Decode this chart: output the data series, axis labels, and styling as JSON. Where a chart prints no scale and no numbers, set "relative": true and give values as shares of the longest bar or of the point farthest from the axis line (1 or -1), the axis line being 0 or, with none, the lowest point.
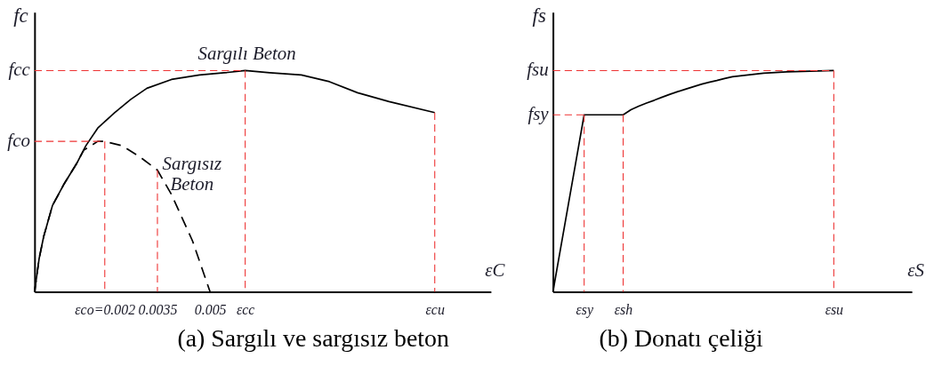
{
  "chart_data": [
    {
      "type": "line",
      "title": "(a) Sargılı ve sargısız beton",
      "xlabel": "εC",
      "ylabel": "fc",
      "relative": true,
      "grid": false,
      "xlim": [
        0,
        0.013
      ],
      "xticks": [
        {
          "value": 0.002,
          "label": "εco=0.002"
        },
        0.0035,
        0.005,
        {
          "value": 0.006,
          "label": "εcc"
        },
        {
          "value": 0.0114,
          "label": "εcu"
        }
      ],
      "series": [
        {
          "name": "Sargılı Beton",
          "color": "#000000",
          "line_style": "solid",
          "x": [
            0,
            0.00013,
            0.00026,
            0.00051,
            0.00085,
            0.0012,
            0.00146,
            0.0018,
            0.00228,
            0.00274,
            0.0032,
            0.0039,
            0.0047,
            0.0054,
            0.006,
            0.0067,
            0.0076,
            0.0084,
            0.0092,
            0.0101,
            0.0114
          ],
          "values": [
            0,
            0.15,
            0.25,
            0.39,
            0.49,
            0.58,
            0.66,
            0.74,
            0.81,
            0.87,
            0.92,
            0.96,
            0.98,
            0.99,
            1,
            0.99,
            0.98,
            0.95,
            0.9,
            0.86,
            0.81
          ]
        },
        {
          "name": "Sargısız Beton",
          "color": "#000000",
          "line_style": "dashed",
          "x": [
            0,
            0.00013,
            0.00026,
            0.00051,
            0.00085,
            0.0012,
            0.0014,
            0.0018,
            0.002,
            0.0025,
            0.003,
            0.0035,
            0.0039,
            0.0045,
            0.005
          ],
          "values": [
            0,
            0.15,
            0.25,
            0.39,
            0.49,
            0.58,
            0.64,
            0.68,
            0.68,
            0.66,
            0.61,
            0.55,
            0.44,
            0.23,
            0
          ]
        },
        {
          "name": "fco",
          "color": "#ee3333",
          "line_style": "dashed",
          "x": [
            0,
            0.002,
            0.002
          ],
          "values": [
            0.68,
            0.68,
            0
          ]
        },
        {
          "name": "fcc",
          "color": "#ee3333",
          "line_style": "dashed",
          "x": [
            0,
            0.006,
            0.006
          ],
          "values": [
            1,
            1,
            0
          ]
        },
        {
          "color": "#ee3333",
          "line_style": "dashed",
          "x": [
            0.0035,
            0.0035
          ],
          "values": [
            0.55,
            0
          ]
        },
        {
          "color": "#ee3333",
          "line_style": "dashed",
          "x": [
            0.0114,
            0.0114
          ],
          "values": [
            0.81,
            0
          ]
        }
      ]
    },
    {
      "type": "line",
      "title": "(b) Donatı çeliği",
      "xlabel": "εS",
      "ylabel": "fs",
      "relative": true,
      "grid": false,
      "categories": [
        null,
        null,
        null,
        null,
        "εsy",
        null,
        null,
        null,
        null,
        "εsh",
        null,
        null,
        null,
        null,
        null,
        null,
        null,
        null,
        null,
        null,
        null,
        null,
        null,
        null,
        null,
        null,
        null,
        null,
        null,
        null,
        null,
        null,
        null,
        null,
        null,
        null,
        "εsu",
        null,
        null,
        null,
        null,
        null,
        null,
        null,
        null,
        null,
        null
      ],
      "series": [
        {
          "color": "#000000",
          "line_style": "solid",
          "values": [
            0,
            0.2,
            0.4,
            0.6,
            0.8,
            0.8,
            0.8,
            0.8,
            0.8,
            0.8,
            0.823,
            0.839,
            0.853,
            0.866,
            0.88,
            0.893,
            0.905,
            0.916,
            0.927,
            0.938,
            0.947,
            0.955,
            0.964,
            0.972,
            0.976,
            0.98,
            0.984,
            0.988,
            0.99,
            0.992,
            0.994,
            0.995,
            0.996,
            0.997,
            0.998,
            0.999,
            1,
            null,
            null,
            null,
            null,
            null,
            null,
            null,
            null,
            null,
            null
          ]
        },
        {
          "name": "fsu",
          "color": "#ee3333",
          "line_style": "dashed",
          "values": [
            1,
            1,
            1,
            1,
            1,
            1,
            1,
            1,
            1,
            1,
            1,
            1,
            1,
            1,
            1,
            1,
            1,
            1,
            1,
            1,
            1,
            1,
            1,
            1,
            1,
            1,
            1,
            1,
            1,
            1,
            1,
            1,
            1,
            1,
            1,
            1,
            1,
            null,
            null,
            null,
            null,
            null,
            null,
            null,
            null,
            null,
            null
          ]
        },
        {
          "name": "fsy",
          "color": "#ee3333",
          "line_style": "dashed",
          "values": [
            0.8,
            0.8,
            0.8,
            0.8,
            0.8,
            null,
            null,
            null,
            null,
            null,
            null,
            null,
            null,
            null,
            null,
            null,
            null,
            null,
            null,
            null,
            null,
            null,
            null,
            null,
            null,
            null,
            null,
            null,
            null,
            null,
            null,
            null,
            null,
            null,
            null,
            null,
            null,
            null,
            null,
            null,
            null,
            null,
            null,
            null,
            null,
            null,
            null
          ]
        },
        {
          "color": "#ee3333",
          "line_style": "dashed",
          "x": [
            "εsy",
            "εsy"
          ],
          "values": [
            0.8,
            0
          ]
        },
        {
          "color": "#ee3333",
          "line_style": "dashed",
          "x": [
            "εsh",
            "εsh"
          ],
          "values": [
            0.8,
            0
          ]
        },
        {
          "color": "#ee3333",
          "line_style": "dashed",
          "x": [
            "εsu",
            "εsu"
          ],
          "values": [
            1,
            0
          ]
        }
      ]
    }
  ]
}
